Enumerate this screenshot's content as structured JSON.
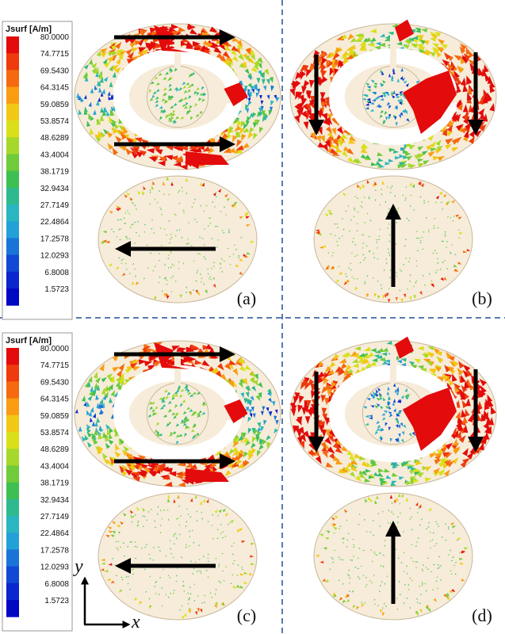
{
  "legend": {
    "title": "Jsurf [A/m]",
    "values": [
      "80.0000",
      "74.7715",
      "69.5430",
      "64.3145",
      "59.0859",
      "53.8574",
      "48.6289",
      "43.4004",
      "38.1719",
      "32.9434",
      "27.7149",
      "22.4864",
      "17.2578",
      "12.0293",
      "6.8008",
      "1.5723"
    ],
    "colors": [
      "#e30b0b",
      "#ee3a0d",
      "#f56a10",
      "#f99c12",
      "#f2c815",
      "#d9e019",
      "#a6d82b",
      "#6fcb3a",
      "#3fbf52",
      "#2fb98e",
      "#2ab6c0",
      "#24a0d8",
      "#1a74d8",
      "#1248d4",
      "#0b26cc",
      "#0008c4"
    ]
  },
  "panels": [
    {
      "label": "(a)",
      "arrows_upper": "horizontal-right",
      "arrow_lower": "left"
    },
    {
      "label": "(b)",
      "arrows_upper": "vertical-down",
      "arrow_lower": "up"
    },
    {
      "label": "(c)",
      "arrows_upper": "horizontal-right",
      "arrow_lower": "left"
    },
    {
      "label": "(d)",
      "arrows_upper": "vertical-down",
      "arrow_lower": "up"
    }
  ],
  "axes": {
    "x": "x",
    "y": "y"
  },
  "colors": {
    "disk_fill": "#f6ecd9",
    "disk_stroke": "#c9b79a",
    "divider": "#5a7ab0",
    "arrow": "#000000"
  }
}
